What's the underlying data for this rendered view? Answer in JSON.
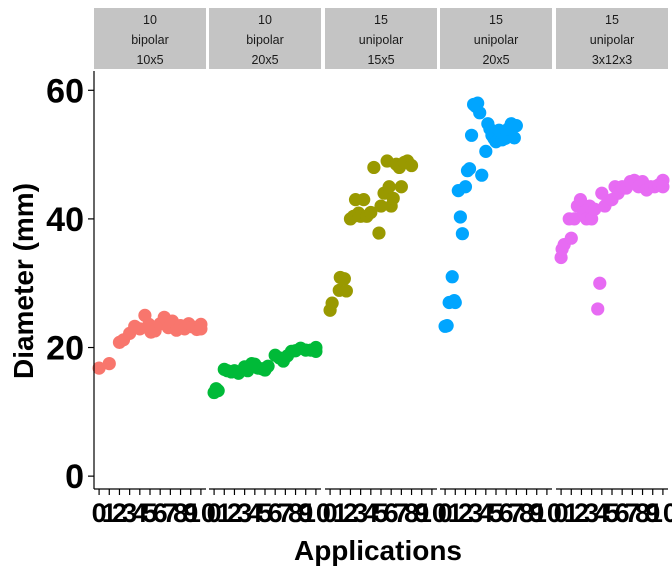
{
  "chart_data": {
    "type": "scatter",
    "xlabel": "Applications",
    "ylabel": "Diameter (mm)",
    "ylim": [
      -2,
      63
    ],
    "xlim": [
      -0.5,
      10.5
    ],
    "y_ticks": [
      0,
      20,
      40,
      60
    ],
    "x_ticks": [
      "0",
      "1",
      "2",
      "3",
      "4",
      "5",
      "6",
      "7",
      "8",
      "9",
      "10"
    ],
    "grid": false,
    "legend": "none",
    "facets": [
      {
        "strip": [
          "10",
          "bipolar",
          "10x5"
        ],
        "color": "#F8766D",
        "points": [
          [
            0,
            16.8
          ],
          [
            1,
            17.5
          ],
          [
            2,
            20.8
          ],
          [
            2.4,
            21.2
          ],
          [
            3,
            22.2
          ],
          [
            3.5,
            23.3
          ],
          [
            4,
            22.9
          ],
          [
            4.5,
            25.0
          ],
          [
            4.9,
            23.6
          ],
          [
            5.1,
            22.4
          ],
          [
            5.5,
            22.6
          ],
          [
            6,
            23.7
          ],
          [
            6.4,
            24.7
          ],
          [
            6.8,
            23.1
          ],
          [
            7.2,
            24.1
          ],
          [
            7.6,
            22.7
          ],
          [
            8,
            23.4
          ],
          [
            8.4,
            22.9
          ],
          [
            8.8,
            23.7
          ],
          [
            9.2,
            23.2
          ],
          [
            9.6,
            22.8
          ],
          [
            10,
            23.6
          ],
          [
            10,
            22.9
          ]
        ]
      },
      {
        "strip": [
          "10",
          "bipolar",
          "20x5"
        ],
        "color": "#00BA38",
        "points": [
          [
            0,
            13.0
          ],
          [
            0.2,
            13.6
          ],
          [
            0.4,
            13.3
          ],
          [
            1,
            16.6
          ],
          [
            1.3,
            16.4
          ],
          [
            1.7,
            16.2
          ],
          [
            2,
            16.4
          ],
          [
            2.4,
            16.0
          ],
          [
            3,
            17.0
          ],
          [
            3.3,
            16.4
          ],
          [
            3.7,
            17.5
          ],
          [
            4,
            17.4
          ],
          [
            4.3,
            16.8
          ],
          [
            4.7,
            16.7
          ],
          [
            5,
            16.5
          ],
          [
            5.3,
            17.1
          ],
          [
            6,
            18.8
          ],
          [
            6.4,
            18.4
          ],
          [
            6.8,
            17.9
          ],
          [
            7.2,
            18.7
          ],
          [
            7.6,
            19.4
          ],
          [
            8,
            19.5
          ],
          [
            8.5,
            19.9
          ],
          [
            9,
            19.6
          ],
          [
            9.5,
            19.6
          ],
          [
            10,
            20.0
          ],
          [
            10,
            19.4
          ]
        ]
      },
      {
        "strip": [
          "15",
          "unipolar",
          "15x5"
        ],
        "color": "#999900",
        "points": [
          [
            0,
            25.8
          ],
          [
            0.2,
            26.9
          ],
          [
            0.9,
            28.9
          ],
          [
            1,
            30.9
          ],
          [
            1.4,
            30.7
          ],
          [
            1.6,
            28.8
          ],
          [
            2,
            40.0
          ],
          [
            2.3,
            40.4
          ],
          [
            2.5,
            43.0
          ],
          [
            2.8,
            40.9
          ],
          [
            3,
            40.4
          ],
          [
            3.3,
            43.0
          ],
          [
            3.6,
            40.4
          ],
          [
            4,
            41.0
          ],
          [
            4.3,
            48.0
          ],
          [
            4.8,
            37.8
          ],
          [
            5,
            42.0
          ],
          [
            5.3,
            44.0
          ],
          [
            5.6,
            49.0
          ],
          [
            5.8,
            45.0
          ],
          [
            6,
            42.0
          ],
          [
            6.2,
            43.2
          ],
          [
            6.5,
            48.5
          ],
          [
            6.8,
            48.0
          ],
          [
            7,
            45.0
          ],
          [
            7.3,
            48.8
          ],
          [
            7.6,
            49.0
          ],
          [
            8,
            48.3
          ]
        ]
      },
      {
        "strip": [
          "15",
          "unipolar",
          "20x5"
        ],
        "color": "#00A5FF",
        "points": [
          [
            0,
            23.3
          ],
          [
            0.2,
            23.4
          ],
          [
            0.4,
            27.0
          ],
          [
            0.7,
            31.0
          ],
          [
            0.9,
            27.3
          ],
          [
            1,
            27.0
          ],
          [
            1.3,
            44.4
          ],
          [
            1.5,
            40.3
          ],
          [
            1.7,
            37.7
          ],
          [
            2,
            45.0
          ],
          [
            2.2,
            47.5
          ],
          [
            2.4,
            47.8
          ],
          [
            2.6,
            53.0
          ],
          [
            2.8,
            57.8
          ],
          [
            3,
            57.5
          ],
          [
            3.2,
            58.0
          ],
          [
            3.4,
            56.5
          ],
          [
            3.6,
            46.8
          ],
          [
            4,
            50.5
          ],
          [
            4.2,
            54.8
          ],
          [
            4.4,
            54.0
          ],
          [
            4.6,
            53.0
          ],
          [
            4.8,
            52.5
          ],
          [
            5,
            52.0
          ],
          [
            5.3,
            53.8
          ],
          [
            5.6,
            52.3
          ],
          [
            5.9,
            52.5
          ],
          [
            6.2,
            54.0
          ],
          [
            6.5,
            54.8
          ],
          [
            6.8,
            52.6
          ],
          [
            7,
            54.5
          ]
        ]
      },
      {
        "strip": [
          "15",
          "unipolar",
          "3x12x3"
        ],
        "color": "#E76BF3",
        "points": [
          [
            0,
            34.0
          ],
          [
            0.1,
            35.3
          ],
          [
            0.3,
            36.0
          ],
          [
            0.8,
            40.0
          ],
          [
            1,
            37.0
          ],
          [
            1.3,
            40.0
          ],
          [
            1.6,
            42.0
          ],
          [
            1.9,
            43.0
          ],
          [
            2.2,
            41.0
          ],
          [
            2.5,
            40.0
          ],
          [
            2.8,
            42.0
          ],
          [
            3,
            40.0
          ],
          [
            3.3,
            41.5
          ],
          [
            3.6,
            26.0
          ],
          [
            3.8,
            30.0
          ],
          [
            4,
            44.0
          ],
          [
            4.3,
            42.0
          ],
          [
            4.6,
            42.8
          ],
          [
            5,
            43.0
          ],
          [
            5.3,
            45.0
          ],
          [
            5.6,
            44.0
          ],
          [
            6,
            45.0
          ],
          [
            6.4,
            44.8
          ],
          [
            6.8,
            45.8
          ],
          [
            7.2,
            46.0
          ],
          [
            7.6,
            45.0
          ],
          [
            8,
            45.8
          ],
          [
            8.4,
            44.5
          ],
          [
            8.8,
            45.0
          ],
          [
            9.2,
            45.0
          ],
          [
            9.6,
            45.3
          ],
          [
            10,
            46.0
          ],
          [
            10,
            45.0
          ]
        ]
      }
    ]
  }
}
